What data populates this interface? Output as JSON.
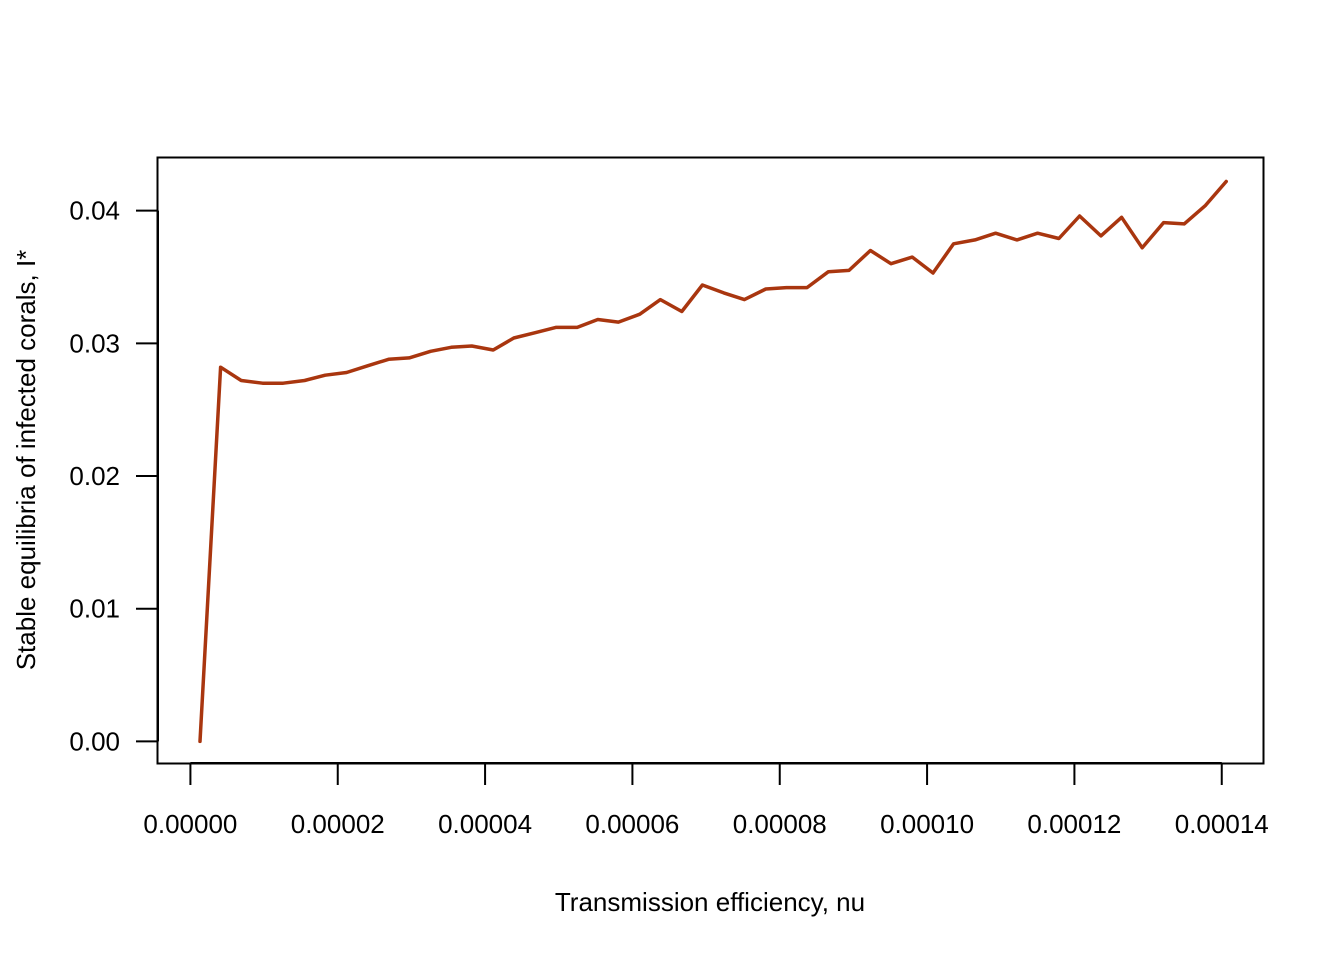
{
  "chart_data": {
    "type": "line",
    "title": "",
    "xlabel": "Transmission efficiency, nu",
    "ylabel": "Stable equilibria of infected corals, I*",
    "xlim": [
      -4.4e-06,
      0.0001456
    ],
    "ylim": [
      -0.00163,
      0.04397
    ],
    "x_ticks": [
      0,
      2e-05,
      4e-05,
      6e-05,
      8e-05,
      0.0001,
      0.00012,
      0.00014
    ],
    "x_tick_labels": [
      "0.00000",
      "0.00002",
      "0.00004",
      "0.00006",
      "0.00008",
      "0.00010",
      "0.00012",
      "0.00014"
    ],
    "y_ticks": [
      0,
      0.01,
      0.02,
      0.03,
      0.04
    ],
    "y_tick_labels": [
      "0.00",
      "0.01",
      "0.02",
      "0.03",
      "0.04"
    ],
    "grid": false,
    "line_color": "#A9360F",
    "series": [
      {
        "x": [
          1.3e-06,
          4.1e-06,
          6.9e-06,
          9.8e-06,
          1.26e-05,
          1.55e-05,
          1.83e-05,
          2.12e-05,
          2.4e-05,
          2.69e-05,
          2.97e-05,
          3.26e-05,
          3.54e-05,
          3.82e-05,
          4.11e-05,
          4.39e-05,
          4.68e-05,
          4.96e-05,
          5.25e-05,
          5.53e-05,
          5.81e-05,
          6.1e-05,
          6.38e-05,
          6.67e-05,
          6.95e-05,
          7.24e-05,
          7.52e-05,
          7.81e-05,
          8.09e-05,
          8.37e-05,
          8.66e-05,
          8.94e-05,
          9.23e-05,
          9.51e-05,
          9.8e-05,
          0.0001008,
          0.0001036,
          0.0001065,
          0.0001093,
          0.0001122,
          0.000115,
          0.0001179,
          0.0001207,
          0.0001236,
          0.0001264,
          0.0001292,
          0.0001321,
          0.0001349,
          0.0001378,
          0.0001406
        ],
        "values": [
          0.0,
          0.0282,
          0.0272,
          0.027,
          0.027,
          0.0272,
          0.0276,
          0.0278,
          0.0283,
          0.0288,
          0.0289,
          0.0294,
          0.0297,
          0.0298,
          0.0295,
          0.0304,
          0.0308,
          0.0312,
          0.0312,
          0.0318,
          0.0316,
          0.0322,
          0.0333,
          0.0324,
          0.0344,
          0.0338,
          0.0333,
          0.0341,
          0.0342,
          0.0342,
          0.0354,
          0.0355,
          0.037,
          0.036,
          0.0365,
          0.0353,
          0.0375,
          0.0378,
          0.0383,
          0.0378,
          0.0383,
          0.0379,
          0.0396,
          0.0381,
          0.0395,
          0.0372,
          0.0391,
          0.039,
          0.0404,
          0.0422
        ]
      }
    ]
  }
}
